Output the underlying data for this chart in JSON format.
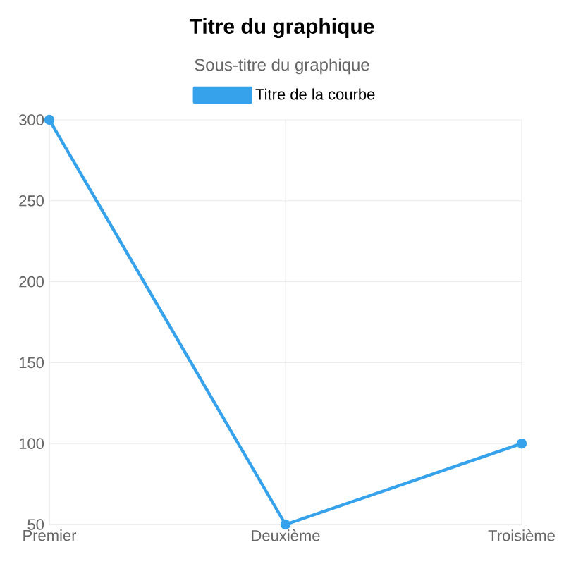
{
  "chart_data": {
    "type": "line",
    "title": "Titre du graphique",
    "subtitle": "Sous-titre du graphique",
    "categories": [
      "Premier",
      "Deuxième",
      "Troisième"
    ],
    "series": [
      {
        "name": "Titre de la courbe",
        "color": "#36a2eb",
        "values": [
          300,
          50,
          100
        ]
      }
    ],
    "ylim": [
      50,
      300
    ],
    "yticks": [
      50,
      100,
      150,
      200,
      250,
      300
    ],
    "grid": true,
    "legend": "top",
    "marker": "circle",
    "line_style": "solid"
  }
}
